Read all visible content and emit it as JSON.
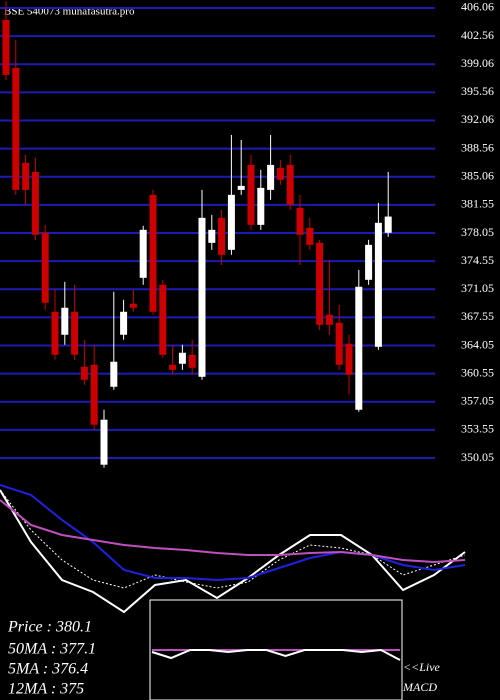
{
  "header": {
    "title": "BSE 540073 munafasutra.pro"
  },
  "chart_data": [
    {
      "type": "candlestick",
      "ylim": [
        348.56,
        407.05
      ],
      "yticks": [
        406.06,
        402.56,
        399.06,
        395.56,
        392.06,
        388.56,
        385.06,
        381.55,
        378.05,
        374.55,
        371.05,
        367.55,
        364.05,
        360.55,
        357.05,
        353.55,
        350.05
      ],
      "grid": true,
      "grid_color": "#1c1cb4",
      "up_color": "#ffffff",
      "down_color": "#cc0000",
      "open": [
        404.57,
        398.6,
        386.78,
        385.66,
        378.08,
        368.25,
        365.39,
        368.25,
        361.41,
        361.66,
        349.22,
        358.92,
        365.39,
        369.25,
        372.48,
        382.8,
        371.61,
        361.66,
        361.78,
        362.9,
        360.16,
        376.83,
        379.94,
        375.96,
        383.42,
        386.53,
        379.07,
        383.42,
        386.16,
        386.53,
        381.19,
        378.7,
        376.83,
        367.88,
        366.88,
        364.27,
        356.06,
        372.23,
        363.89,
        378.08
      ],
      "high": [
        406.9,
        402.08,
        387.78,
        387.4,
        379.07,
        370.99,
        371.98,
        371.61,
        364.77,
        364.15,
        356.06,
        370.74,
        369.74,
        370.99,
        378.95,
        383.42,
        372.23,
        364.15,
        364.15,
        364.77,
        383.42,
        380.31,
        380.94,
        390.26,
        389.64,
        387.78,
        385.91,
        390.26,
        387.15,
        387.78,
        382.8,
        379.94,
        377.2,
        374.72,
        369.12,
        365.39,
        373.47,
        377.2,
        381.81,
        385.66
      ],
      "low": [
        397.1,
        382.8,
        381.56,
        377.2,
        368.49,
        362.28,
        364.15,
        362.28,
        359.17,
        353.57,
        348.85,
        358.55,
        364.77,
        368.25,
        371.61,
        367.88,
        362.53,
        360.41,
        361.03,
        360.41,
        359.79,
        375.96,
        374.09,
        375.34,
        382.8,
        378.45,
        378.45,
        382.18,
        384.05,
        380.94,
        374.09,
        376.0,
        366.01,
        365.39,
        361.03,
        357.93,
        355.81,
        371.61,
        363.52,
        377.58
      ],
      "close": [
        397.73,
        383.42,
        383.42,
        377.83,
        369.37,
        362.9,
        368.75,
        362.9,
        359.79,
        354.19,
        354.82,
        362.03,
        368.25,
        368.75,
        378.45,
        368.25,
        362.9,
        361.03,
        363.15,
        361.28,
        379.94,
        378.45,
        375.34,
        382.8,
        383.92,
        379.07,
        383.67,
        386.53,
        384.67,
        381.56,
        377.83,
        376.58,
        366.63,
        366.63,
        361.66,
        360.41,
        371.36,
        376.58,
        379.32,
        380.1
      ]
    },
    {
      "type": "line",
      "ylim": [
        0,
        220
      ],
      "series": [
        {
          "color": "#ffffff",
          "values": [
            210,
            158,
            120,
            108,
            88,
            115,
            120,
            102,
            122,
            145,
            165,
            165,
            145,
            110,
            125,
            148
          ]
        },
        {
          "color": "#ffffff",
          "dash": true,
          "values": [
            210,
            170,
            140,
            120,
            112,
            125,
            118,
            112,
            118,
            140,
            155,
            152,
            145,
            125,
            135,
            145
          ]
        },
        {
          "color": "#2020e0",
          "values": [
            215,
            205,
            180,
            158,
            130,
            122,
            122,
            120,
            122,
            132,
            142,
            148,
            145,
            135,
            130,
            135
          ]
        },
        {
          "color": "#c050c0",
          "values": [
            200,
            175,
            165,
            160,
            155,
            152,
            150,
            147,
            145,
            145,
            147,
            148,
            145,
            140,
            138,
            140
          ]
        }
      ]
    },
    {
      "type": "line",
      "title": "MACD",
      "annotation": "<<Live",
      "ylim": [
        0,
        100
      ],
      "series": [
        {
          "color": "#c050c0",
          "values": [
            50,
            50,
            50,
            50,
            50,
            50,
            50,
            50,
            50,
            50,
            50,
            50,
            50,
            50
          ]
        },
        {
          "color": "#ffffff",
          "values": [
            48,
            42,
            50,
            50,
            48,
            50,
            50,
            44,
            50,
            50,
            50,
            48,
            50,
            40
          ]
        }
      ]
    }
  ],
  "legend": {
    "items": [
      "Price  : 380.1",
      "50MA : 377.1",
      "5MA : 376.4",
      "12MA : 375"
    ]
  }
}
